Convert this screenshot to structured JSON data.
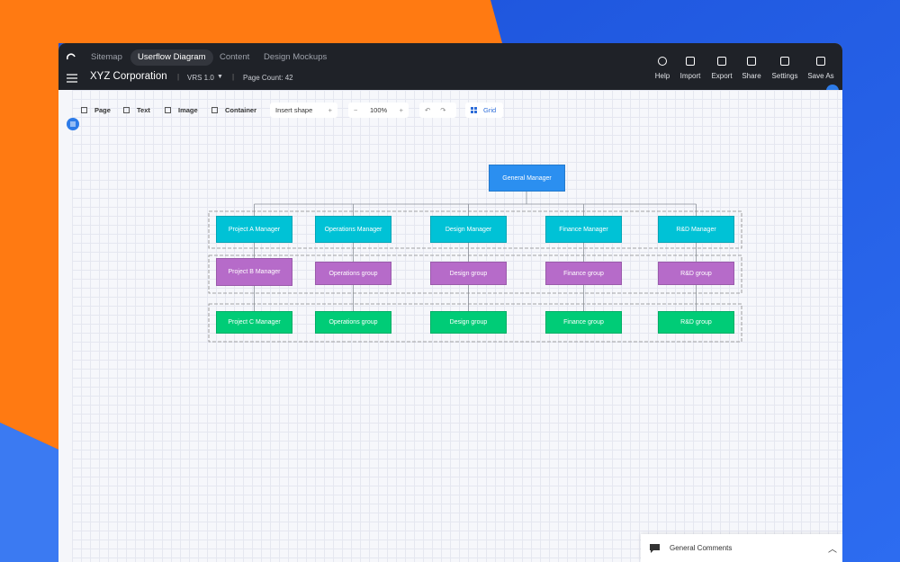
{
  "nav": {
    "tabs": [
      "Sitemap",
      "Userflow Diagram",
      "Content",
      "Design Mockups"
    ],
    "project": "XYZ Corporation",
    "version": "VRS 1.0",
    "page_count": "Page Count: 42",
    "actions": [
      "Help",
      "Import",
      "Export",
      "Share",
      "Settings",
      "Save As"
    ]
  },
  "toolbar": {
    "items": [
      "Page",
      "Text",
      "Image",
      "Container"
    ],
    "insert": "Insert shape",
    "zoom": "100%",
    "grid": "Grid"
  },
  "diagram": {
    "root": "General Manager",
    "rows": [
      [
        "Project A Manager",
        "Operations Manager",
        "Design Manager",
        "Finance Manager",
        "R&D Manager"
      ],
      [
        "Project B Manager",
        "Operations group",
        "Design group",
        "Finance group",
        "R&D group"
      ],
      [
        "Project C Manager",
        "Operations group",
        "Design group",
        "Finance group",
        "R&D group"
      ]
    ]
  },
  "comments": {
    "title": "General Comments"
  }
}
